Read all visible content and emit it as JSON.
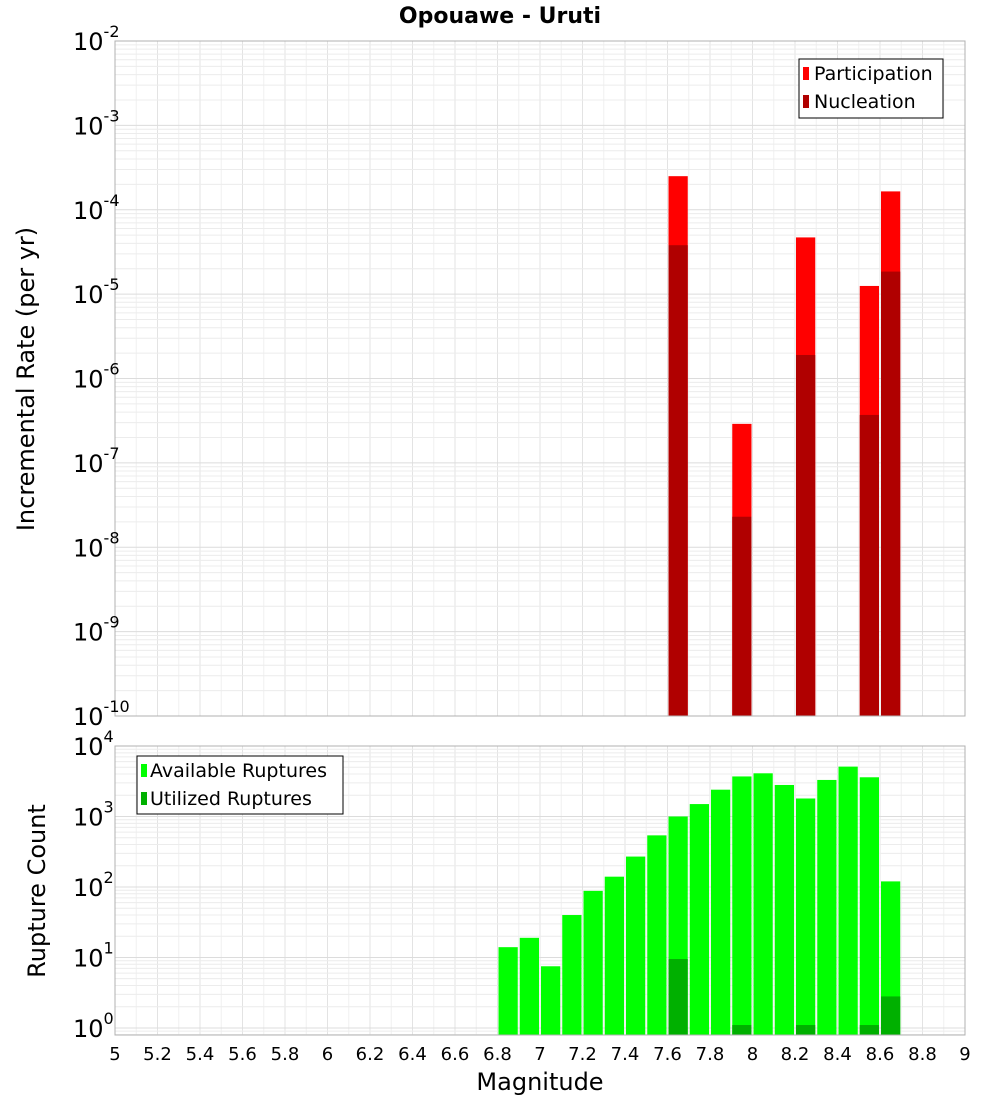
{
  "title": "Opouawe - Uruti",
  "chart_data": [
    {
      "type": "bar",
      "name": "rates",
      "ylabel": "Incremental Rate (per yr)",
      "xlabel": "",
      "yscale": "log",
      "ylim_exp": [
        -10,
        -2
      ],
      "xlim": [
        5,
        9
      ],
      "bar_width": 0.1,
      "legend": {
        "placement": "top-right",
        "entries": [
          {
            "label": "Participation",
            "color": "#ff0000"
          },
          {
            "label": "Nucleation",
            "color": "#b00000"
          }
        ]
      },
      "series": [
        {
          "name": "Participation",
          "color": "#ff0000",
          "x": [
            7.65,
            7.95,
            8.25,
            8.55,
            8.65
          ],
          "values": [
            0.00025,
            2.9e-07,
            4.7e-05,
            1.25e-05,
            0.000165
          ]
        },
        {
          "name": "Nucleation",
          "color": "#b00000",
          "x": [
            7.65,
            7.95,
            8.25,
            8.55,
            8.65
          ],
          "values": [
            3.8e-05,
            2.3e-08,
            1.9e-06,
            3.7e-07,
            1.85e-05
          ]
        }
      ],
      "yticks": [
        {
          "base": "10",
          "exp": "-2"
        },
        {
          "base": "10",
          "exp": "-3"
        },
        {
          "base": "10",
          "exp": "-4"
        },
        {
          "base": "10",
          "exp": "-5"
        },
        {
          "base": "10",
          "exp": "-6"
        },
        {
          "base": "10",
          "exp": "-7"
        },
        {
          "base": "10",
          "exp": "-8"
        },
        {
          "base": "10",
          "exp": "-9"
        },
        {
          "base": "10",
          "exp": "-10"
        }
      ]
    },
    {
      "type": "bar",
      "name": "counts",
      "ylabel": "Rupture Count",
      "xlabel": "Magnitude",
      "yscale": "log",
      "ylim_exp": [
        -0.1,
        4
      ],
      "xlim": [
        5,
        9
      ],
      "bar_width": 0.1,
      "legend": {
        "placement": "top-left",
        "entries": [
          {
            "label": "Available Ruptures",
            "color": "#00ff00"
          },
          {
            "label": "Utilized Ruptures",
            "color": "#00b000"
          }
        ]
      },
      "series": [
        {
          "name": "Available Ruptures",
          "color": "#00ff00",
          "x": [
            6.85,
            6.95,
            7.05,
            7.15,
            7.25,
            7.35,
            7.45,
            7.55,
            7.65,
            7.75,
            7.85,
            7.95,
            8.05,
            8.15,
            8.25,
            8.35,
            8.45,
            8.55,
            8.65
          ],
          "values": [
            14,
            19,
            7.5,
            40,
            88,
            140,
            270,
            540,
            1000,
            1500,
            2400,
            3700,
            4100,
            2800,
            1800,
            3300,
            5100,
            3600,
            120
          ]
        },
        {
          "name": "Utilized Ruptures",
          "color": "#00b000",
          "x": [
            7.65,
            7.95,
            8.25,
            8.55,
            8.65
          ],
          "values": [
            9.5,
            1.1,
            1.1,
            1.1,
            2.8
          ]
        }
      ],
      "yticks": [
        {
          "base": "10",
          "exp": "4"
        },
        {
          "base": "10",
          "exp": "3"
        },
        {
          "base": "10",
          "exp": "2"
        },
        {
          "base": "10",
          "exp": "1"
        },
        {
          "base": "10",
          "exp": "0"
        }
      ]
    }
  ],
  "xticks": [
    "5",
    "5.2",
    "5.4",
    "5.6",
    "5.8",
    "6",
    "6.2",
    "6.4",
    "6.6",
    "6.8",
    "7",
    "7.2",
    "7.4",
    "7.6",
    "7.8",
    "8",
    "8.2",
    "8.4",
    "8.6",
    "8.8",
    "9"
  ]
}
